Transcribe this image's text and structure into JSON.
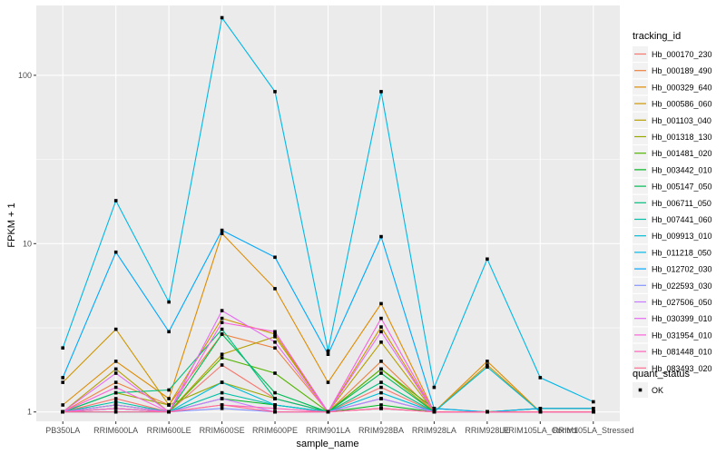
{
  "chart_data": {
    "type": "line",
    "title": "",
    "xlabel": "sample_name",
    "ylabel": "FPKM + 1",
    "y_scale": "log10",
    "ylim": [
      0.88,
      260
    ],
    "y_ticks": [
      1,
      10,
      100
    ],
    "y_tick_labels": [
      "1",
      "10",
      "100"
    ],
    "grid": true,
    "background": "#ebebeb",
    "categories": [
      "PB350LA",
      "RRIM600LA",
      "RRIM600LE",
      "RRIM600SE",
      "RRIM600PE",
      "RRIM901LA",
      "RRIM928BA",
      "RRIM928LA",
      "RRIM928LE",
      "RRIM105LA_Control",
      "RRIM105LA_Stressed"
    ],
    "legend_placement": "right",
    "legend_color_title": "tracking_id",
    "legend_shape_title": "quant_status",
    "legend_shape_entries": [
      "OK"
    ],
    "series": [
      {
        "name": "Hb_000170_230",
        "color": "#f8766d",
        "values": [
          1.0,
          1.2,
          1.0,
          1.9,
          1.2,
          1.0,
          1.4,
          1.0,
          1.0,
          1.0,
          1.0
        ]
      },
      {
        "name": "Hb_000189_490",
        "color": "#ed813e",
        "values": [
          1.0,
          1.5,
          1.1,
          2.9,
          2.4,
          1.0,
          2.0,
          1.0,
          1.0,
          1.0,
          1.0
        ]
      },
      {
        "name": "Hb_000329_640",
        "color": "#de8c00",
        "values": [
          1.1,
          2.0,
          1.2,
          11.5,
          5.4,
          1.5,
          4.4,
          1.0,
          2.0,
          1.0,
          1.0
        ]
      },
      {
        "name": "Hb_000586_060",
        "color": "#cd9600",
        "values": [
          1.5,
          3.1,
          1.1,
          3.6,
          2.9,
          1.0,
          3.2,
          1.0,
          1.9,
          1.0,
          1.0
        ]
      },
      {
        "name": "Hb_001103_040",
        "color": "#b79f00",
        "values": [
          1.0,
          1.8,
          1.0,
          2.2,
          2.8,
          1.0,
          2.6,
          1.0,
          1.0,
          1.0,
          1.0
        ]
      },
      {
        "name": "Hb_001318_130",
        "color": "#9aa800",
        "values": [
          1.0,
          1.3,
          1.1,
          1.5,
          1.2,
          1.0,
          1.8,
          1.0,
          1.0,
          1.05,
          1.05
        ]
      },
      {
        "name": "Hb_001481_020",
        "color": "#52b400",
        "values": [
          1.0,
          1.1,
          1.0,
          2.1,
          1.7,
          1.0,
          1.8,
          1.05,
          1.0,
          1.05,
          1.05
        ]
      },
      {
        "name": "Hb_003442_010",
        "color": "#00b520",
        "values": [
          1.0,
          1.05,
          1.0,
          1.2,
          1.1,
          1.0,
          1.1,
          1.0,
          1.0,
          1.0,
          1.0
        ]
      },
      {
        "name": "Hb_005147_050",
        "color": "#00bc56",
        "values": [
          1.0,
          1.1,
          1.0,
          2.9,
          1.3,
          1.0,
          1.7,
          1.0,
          1.0,
          1.0,
          1.0
        ]
      },
      {
        "name": "Hb_006711_050",
        "color": "#00bf7d",
        "values": [
          1.0,
          1.3,
          1.35,
          3.1,
          1.2,
          1.0,
          1.5,
          1.0,
          1.0,
          1.0,
          1.0
        ]
      },
      {
        "name": "Hb_007441_060",
        "color": "#00c0a7",
        "values": [
          1.0,
          1.15,
          1.0,
          1.3,
          1.1,
          1.0,
          1.2,
          1.0,
          1.0,
          1.0,
          1.0
        ]
      },
      {
        "name": "Hb_009913_010",
        "color": "#00bcd6",
        "values": [
          1.0,
          1.0,
          1.0,
          1.5,
          1.1,
          1.0,
          1.3,
          1.0,
          1.85,
          1.0,
          1.0
        ]
      },
      {
        "name": "Hb_011218_050",
        "color": "#00b8e7",
        "values": [
          2.4,
          18.0,
          4.5,
          220.0,
          80.0,
          2.3,
          80.0,
          1.4,
          8.1,
          1.6,
          1.15
        ]
      },
      {
        "name": "Hb_012702_030",
        "color": "#00a9ff",
        "values": [
          1.6,
          8.9,
          3.0,
          12.0,
          8.3,
          2.2,
          11.0,
          1.05,
          1.0,
          1.05,
          1.05
        ]
      },
      {
        "name": "Hb_022593_030",
        "color": "#8494ff",
        "values": [
          1.0,
          1.05,
          1.0,
          1.05,
          1.0,
          1.0,
          1.05,
          1.0,
          1.0,
          1.0,
          1.0
        ]
      },
      {
        "name": "Hb_027506_050",
        "color": "#c77cff",
        "values": [
          1.0,
          1.1,
          1.0,
          1.2,
          1.0,
          1.0,
          1.2,
          1.0,
          1.0,
          1.0,
          1.0
        ]
      },
      {
        "name": "Hb_030399_010",
        "color": "#e76bf3",
        "values": [
          1.0,
          1.7,
          1.0,
          4.0,
          2.6,
          1.0,
          3.0,
          1.0,
          1.0,
          1.0,
          1.0
        ]
      },
      {
        "name": "Hb_031954_010",
        "color": "#fa62db",
        "values": [
          1.0,
          1.4,
          1.0,
          3.4,
          3.0,
          1.0,
          3.6,
          1.0,
          1.0,
          1.0,
          1.0
        ]
      },
      {
        "name": "Hb_081448_010",
        "color": "#ff62bc",
        "values": [
          1.0,
          1.05,
          1.0,
          1.1,
          1.05,
          1.0,
          1.05,
          1.0,
          1.0,
          1.0,
          1.0
        ]
      },
      {
        "name": "Hb_083493_020",
        "color": "#ff6c91",
        "values": [
          1.0,
          1.0,
          1.0,
          1.1,
          1.0,
          1.0,
          1.05,
          1.0,
          1.0,
          1.0,
          1.0
        ]
      }
    ]
  }
}
